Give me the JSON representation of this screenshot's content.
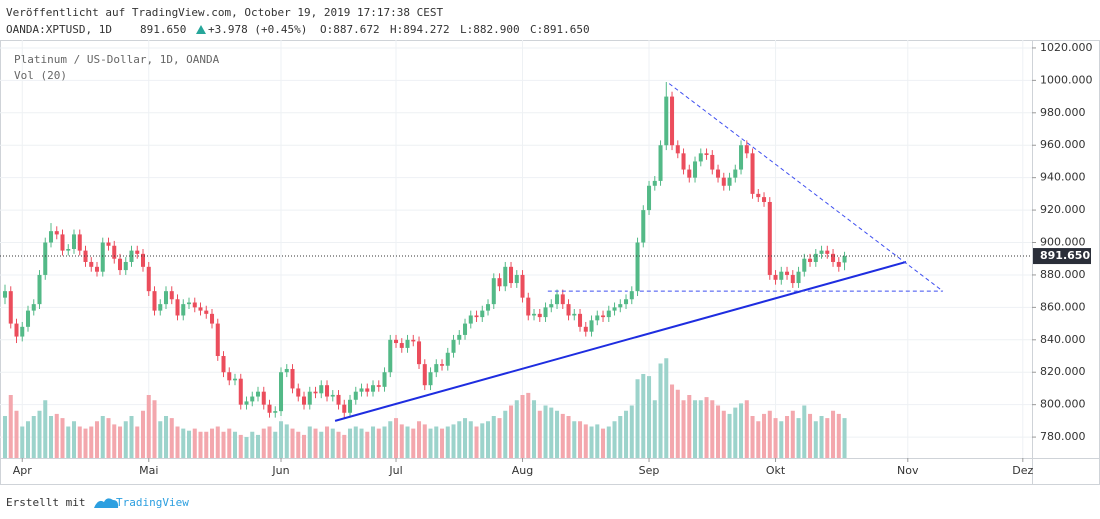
{
  "header": {
    "published": "Veröffentlicht auf TradingView.com, October 19, 2019 17:17:38 CEST",
    "symbol": "OANDA:XPTUSD, 1D",
    "last": "891.650",
    "change": "+3.978 (+0.45%)",
    "open": "O:887.672",
    "high": "H:894.272",
    "low": "L:882.900",
    "close": "C:891.650"
  },
  "legend": {
    "title": "Platinum / US-Dollar, 1D, OANDA",
    "volume": "Vol (20)"
  },
  "footer": {
    "made_with": "Erstellt mit",
    "brand": "TradingView"
  },
  "chart_data": {
    "type": "candlestick",
    "up_color": "#53b987",
    "down_color": "#eb4d5c",
    "up_volume_color": "#9cd3cb",
    "down_volume_color": "#f3a7ad",
    "xlim": [
      -0.87,
      178.6
    ],
    "ylim": [
      767.1,
      1024.9
    ],
    "vlim": [
      0,
      100
    ],
    "grid": true,
    "xticks": [
      {
        "value": 3,
        "label": "Apr"
      },
      {
        "value": 25,
        "label": "Mai"
      },
      {
        "value": 48,
        "label": "Jun"
      },
      {
        "value": 68,
        "label": "Jul"
      },
      {
        "value": 90,
        "label": "Aug"
      },
      {
        "value": 112,
        "label": "Sep"
      },
      {
        "value": 134,
        "label": "Okt"
      },
      {
        "value": 157,
        "label": "Nov"
      },
      {
        "value": 177,
        "label": "Dez"
      }
    ],
    "yticks": [
      {
        "value": 780,
        "label": "780.000"
      },
      {
        "value": 800,
        "label": "800.000"
      },
      {
        "value": 820,
        "label": "820.000"
      },
      {
        "value": 840,
        "label": "840.000"
      },
      {
        "value": 860,
        "label": "860.000"
      },
      {
        "value": 880,
        "label": "880.000"
      },
      {
        "value": 900,
        "label": "900.000"
      },
      {
        "value": 920,
        "label": "920.000"
      },
      {
        "value": 940,
        "label": "940.000"
      },
      {
        "value": 960,
        "label": "960.000"
      },
      {
        "value": 980,
        "label": "980.000"
      },
      {
        "value": 1000,
        "label": "1000.000"
      },
      {
        "value": 1020,
        "label": "1020.000"
      }
    ],
    "last_price": {
      "value": 891.65,
      "label": "891.650"
    },
    "candles": [
      [
        866,
        874,
        862,
        870
      ],
      [
        870,
        873,
        847,
        850
      ],
      [
        850,
        853,
        838,
        842
      ],
      [
        842,
        851,
        839,
        848
      ],
      [
        848,
        861,
        845,
        858
      ],
      [
        858,
        865,
        855,
        862
      ],
      [
        862,
        883,
        859,
        880
      ],
      [
        880,
        903,
        877,
        900
      ],
      [
        900,
        912,
        897,
        907
      ],
      [
        907,
        910,
        902,
        905
      ],
      [
        905,
        908,
        892,
        895
      ],
      [
        895,
        899,
        892,
        896
      ],
      [
        896,
        908,
        893,
        905
      ],
      [
        905,
        908,
        892,
        895
      ],
      [
        895,
        898,
        885,
        888
      ],
      [
        888,
        891,
        882,
        885
      ],
      [
        885,
        888,
        879,
        882
      ],
      [
        882,
        903,
        879,
        900
      ],
      [
        900,
        903,
        895,
        898
      ],
      [
        898,
        901,
        887,
        890
      ],
      [
        890,
        893,
        880,
        883
      ],
      [
        883,
        891,
        880,
        888
      ],
      [
        888,
        898,
        885,
        895
      ],
      [
        895,
        898,
        890,
        893
      ],
      [
        893,
        896,
        882,
        885
      ],
      [
        885,
        888,
        867,
        870
      ],
      [
        870,
        873,
        855,
        858
      ],
      [
        858,
        865,
        855,
        862
      ],
      [
        862,
        873,
        859,
        870
      ],
      [
        870,
        873,
        862,
        865
      ],
      [
        865,
        868,
        852,
        855
      ],
      [
        855,
        865,
        852,
        862
      ],
      [
        862,
        866,
        859,
        863
      ],
      [
        863,
        866,
        857,
        860
      ],
      [
        860,
        863,
        855,
        858
      ],
      [
        858,
        861,
        853,
        856
      ],
      [
        856,
        859,
        847,
        850
      ],
      [
        850,
        853,
        827,
        830
      ],
      [
        830,
        833,
        817,
        820
      ],
      [
        820,
        823,
        812,
        815
      ],
      [
        815,
        819,
        812,
        816
      ],
      [
        816,
        819,
        797,
        800
      ],
      [
        800,
        805,
        797,
        802
      ],
      [
        802,
        808,
        799,
        805
      ],
      [
        805,
        811,
        802,
        808
      ],
      [
        808,
        811,
        797,
        800
      ],
      [
        800,
        803,
        792,
        795
      ],
      [
        795,
        799,
        792,
        796
      ],
      [
        796,
        823,
        793,
        820
      ],
      [
        820,
        825,
        817,
        822
      ],
      [
        822,
        825,
        807,
        810
      ],
      [
        810,
        813,
        802,
        805
      ],
      [
        805,
        808,
        797,
        800
      ],
      [
        800,
        811,
        797,
        808
      ],
      [
        808,
        811,
        804,
        807
      ],
      [
        807,
        815,
        804,
        812
      ],
      [
        812,
        815,
        802,
        805
      ],
      [
        805,
        809,
        802,
        806
      ],
      [
        806,
        809,
        797,
        800
      ],
      [
        800,
        803,
        792,
        795
      ],
      [
        795,
        806,
        792,
        803
      ],
      [
        803,
        811,
        800,
        808
      ],
      [
        808,
        813,
        805,
        810
      ],
      [
        810,
        813,
        805,
        808
      ],
      [
        808,
        815,
        805,
        812
      ],
      [
        812,
        815,
        808,
        811
      ],
      [
        811,
        823,
        808,
        820
      ],
      [
        820,
        843,
        817,
        840
      ],
      [
        840,
        843,
        835,
        838
      ],
      [
        838,
        841,
        832,
        835
      ],
      [
        835,
        843,
        832,
        840
      ],
      [
        840,
        843,
        836,
        839
      ],
      [
        839,
        842,
        822,
        825
      ],
      [
        825,
        828,
        809,
        812
      ],
      [
        812,
        823,
        809,
        820
      ],
      [
        820,
        828,
        817,
        825
      ],
      [
        825,
        828,
        821,
        824
      ],
      [
        824,
        835,
        821,
        832
      ],
      [
        832,
        843,
        829,
        840
      ],
      [
        840,
        846,
        837,
        843
      ],
      [
        843,
        853,
        840,
        850
      ],
      [
        850,
        858,
        847,
        855
      ],
      [
        855,
        858,
        851,
        854
      ],
      [
        854,
        861,
        851,
        858
      ],
      [
        858,
        865,
        855,
        862
      ],
      [
        862,
        881,
        859,
        878
      ],
      [
        878,
        881,
        870,
        873
      ],
      [
        873,
        888,
        870,
        885
      ],
      [
        885,
        888,
        872,
        875
      ],
      [
        875,
        883,
        872,
        880
      ],
      [
        880,
        883,
        863,
        866
      ],
      [
        866,
        869,
        852,
        855
      ],
      [
        855,
        859,
        852,
        856
      ],
      [
        856,
        859,
        851,
        854
      ],
      [
        854,
        863,
        851,
        860
      ],
      [
        860,
        865,
        857,
        862
      ],
      [
        862,
        871,
        859,
        868
      ],
      [
        868,
        871,
        859,
        862
      ],
      [
        862,
        865,
        852,
        855
      ],
      [
        855,
        859,
        852,
        856
      ],
      [
        856,
        859,
        845,
        848
      ],
      [
        848,
        851,
        842,
        845
      ],
      [
        845,
        855,
        842,
        852
      ],
      [
        852,
        858,
        849,
        855
      ],
      [
        855,
        858,
        851,
        854
      ],
      [
        854,
        861,
        851,
        858
      ],
      [
        858,
        863,
        855,
        860
      ],
      [
        860,
        865,
        857,
        862
      ],
      [
        862,
        868,
        859,
        865
      ],
      [
        865,
        873,
        862,
        870
      ],
      [
        870,
        903,
        867,
        900
      ],
      [
        900,
        923,
        897,
        920
      ],
      [
        920,
        938,
        917,
        935
      ],
      [
        935,
        941,
        932,
        938
      ],
      [
        938,
        963,
        935,
        960
      ],
      [
        960,
        999,
        957,
        990
      ],
      [
        990,
        993,
        957,
        960
      ],
      [
        960,
        963,
        952,
        955
      ],
      [
        955,
        958,
        942,
        945
      ],
      [
        945,
        948,
        937,
        940
      ],
      [
        940,
        953,
        937,
        950
      ],
      [
        950,
        958,
        947,
        955
      ],
      [
        955,
        958,
        951,
        954
      ],
      [
        954,
        957,
        942,
        945
      ],
      [
        945,
        948,
        937,
        940
      ],
      [
        940,
        943,
        932,
        935
      ],
      [
        935,
        943,
        932,
        940
      ],
      [
        940,
        948,
        937,
        945
      ],
      [
        945,
        963,
        942,
        960
      ],
      [
        960,
        963,
        952,
        955
      ],
      [
        955,
        958,
        927,
        930
      ],
      [
        930,
        933,
        925,
        928
      ],
      [
        928,
        931,
        922,
        925
      ],
      [
        925,
        928,
        877,
        880
      ],
      [
        880,
        883,
        874,
        877
      ],
      [
        877,
        885,
        874,
        882
      ],
      [
        882,
        885,
        877,
        880
      ],
      [
        880,
        883,
        872,
        875
      ],
      [
        875,
        885,
        872,
        882
      ],
      [
        882,
        893,
        879,
        890
      ],
      [
        890,
        893,
        885,
        888
      ],
      [
        888,
        896,
        885,
        893
      ],
      [
        893,
        898,
        890,
        895
      ],
      [
        895,
        898,
        890,
        893
      ],
      [
        893,
        896,
        885,
        888
      ],
      [
        888,
        891,
        882,
        885
      ],
      [
        887.672,
        894.272,
        882.9,
        891.65
      ]
    ],
    "volume": [
      40,
      60,
      45,
      30,
      35,
      40,
      45,
      55,
      40,
      42,
      38,
      30,
      35,
      30,
      28,
      30,
      35,
      40,
      38,
      32,
      30,
      35,
      40,
      30,
      45,
      60,
      55,
      35,
      40,
      38,
      30,
      28,
      26,
      28,
      25,
      25,
      28,
      30,
      25,
      28,
      25,
      22,
      20,
      25,
      22,
      28,
      30,
      25,
      35,
      32,
      28,
      25,
      22,
      30,
      28,
      25,
      30,
      28,
      25,
      22,
      28,
      30,
      28,
      25,
      30,
      28,
      30,
      35,
      38,
      32,
      30,
      28,
      35,
      32,
      28,
      30,
      28,
      30,
      32,
      35,
      38,
      35,
      30,
      33,
      35,
      40,
      38,
      45,
      50,
      55,
      60,
      62,
      55,
      45,
      50,
      48,
      45,
      42,
      40,
      35,
      35,
      32,
      30,
      32,
      28,
      30,
      35,
      40,
      45,
      50,
      75,
      80,
      78,
      55,
      90,
      95,
      70,
      65,
      55,
      60,
      55,
      55,
      58,
      55,
      50,
      45,
      42,
      48,
      52,
      55,
      40,
      35,
      42,
      45,
      38,
      35,
      40,
      45,
      38,
      50,
      42,
      35,
      40,
      38,
      45,
      42,
      38
    ],
    "trendlines": [
      {
        "color": "#1e2de0",
        "dashed": false,
        "points": [
          [
            57.4,
            790
          ],
          [
            156.7,
            888
          ]
        ]
      },
      {
        "color": "#3f4ff0",
        "dashed": true,
        "points": [
          [
            115.5,
            998
          ],
          [
            163.1,
            870
          ]
        ]
      },
      {
        "color": "#3f4ff0",
        "dashed": true,
        "points": [
          [
            94.4,
            870
          ],
          [
            108.3,
            870
          ]
        ]
      },
      {
        "color": "#3f4ff0",
        "dashed": true,
        "points": [
          [
            110.4,
            870
          ],
          [
            163.1,
            870
          ]
        ]
      }
    ]
  }
}
